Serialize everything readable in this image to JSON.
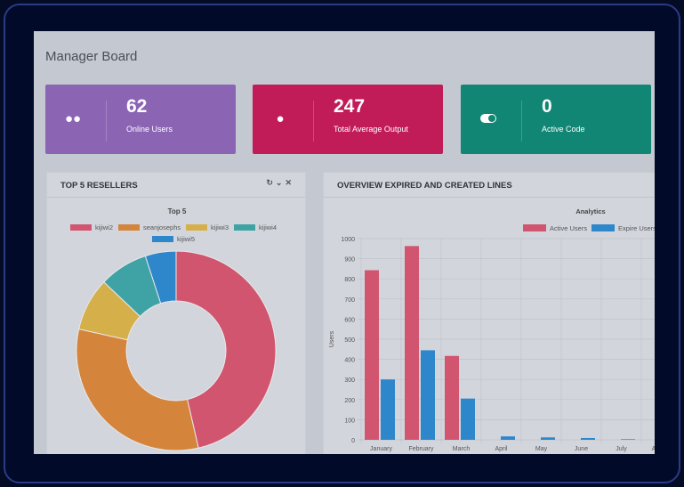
{
  "page_title": "Manager Board",
  "cards": [
    {
      "value": "62",
      "label": "Online Users",
      "icon": "users-icon",
      "color": "#8b64b4"
    },
    {
      "value": "247",
      "label": "Total Average Output",
      "icon": "globe-icon",
      "color": "#c11b58"
    },
    {
      "value": "0",
      "label": "Active Code",
      "icon": "toggle-icon",
      "color": "#118674"
    }
  ],
  "resellers_panel": {
    "title": "TOP 5 RESELLERS",
    "tools": [
      "refresh-icon",
      "chevron-down-icon",
      "close-icon"
    ]
  },
  "lines_panel": {
    "title": "OVERVIEW EXPIRED AND CREATED LINES"
  },
  "chart_data": [
    {
      "type": "pie",
      "title": "Top 5",
      "donut": true,
      "legend": "top",
      "labels": [
        "kijiwi2",
        "seanjosephs",
        "kijiwi3",
        "kijiwi4",
        "kijiwi5"
      ],
      "values": [
        46.4,
        32.1,
        8.6,
        7.9,
        5.0
      ],
      "colors": [
        "#d1556f",
        "#d5843c",
        "#d5b04a",
        "#3fa3a5",
        "#2e86cb"
      ]
    },
    {
      "type": "bar",
      "title": "Analytics",
      "ylabel": "Users",
      "xlabel": "",
      "ylim": [
        0,
        1000
      ],
      "grid": true,
      "legend": "top-right",
      "categories": [
        "January",
        "February",
        "March",
        "April",
        "May",
        "June",
        "July",
        "August"
      ],
      "yticks": [
        0,
        100,
        200,
        300,
        400,
        500,
        600,
        700,
        800,
        900,
        1000
      ],
      "series": [
        {
          "name": "Active Users",
          "color": "#d1556f",
          "values": [
            843,
            963,
            417,
            0,
            0,
            0,
            0,
            0
          ]
        },
        {
          "name": "Expire Users",
          "color": "#2e86cb",
          "values": [
            300,
            445,
            205,
            17,
            12,
            9,
            3,
            0
          ]
        }
      ]
    }
  ]
}
